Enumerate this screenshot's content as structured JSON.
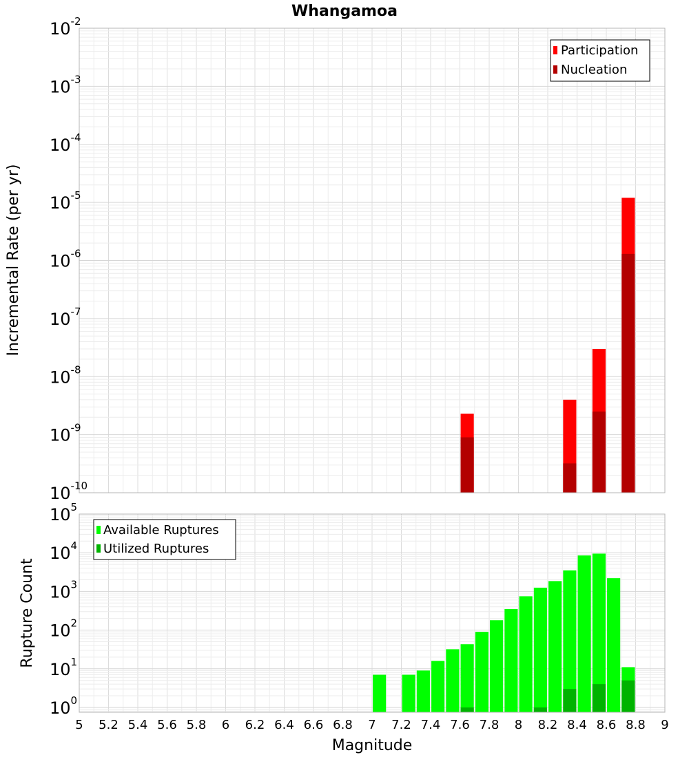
{
  "chart_data": [
    {
      "type": "bar",
      "title": "Whangamoa",
      "xlabel": "",
      "ylabel": "Incremental Rate (per yr)",
      "yscale": "log",
      "xlim": [
        5,
        9
      ],
      "ylim": [
        1e-10,
        0.01
      ],
      "grid": true,
      "legend_position": "top-right",
      "bar_width": 0.09,
      "yticks": [
        {
          "base": "10",
          "exp": "-10"
        },
        {
          "base": "10",
          "exp": "-9"
        },
        {
          "base": "10",
          "exp": "-8"
        },
        {
          "base": "10",
          "exp": "-7"
        },
        {
          "base": "10",
          "exp": "-6"
        },
        {
          "base": "10",
          "exp": "-5"
        },
        {
          "base": "10",
          "exp": "-4"
        },
        {
          "base": "10",
          "exp": "-3"
        },
        {
          "base": "10",
          "exp": "-2"
        }
      ],
      "series": [
        {
          "name": "Participation",
          "color": "#ff0000",
          "x": [
            7.65,
            8.35,
            8.55,
            8.75
          ],
          "values": [
            2.3e-09,
            4e-09,
            3e-08,
            1.2e-05
          ]
        },
        {
          "name": "Nucleation",
          "color": "#b30000",
          "x": [
            7.65,
            8.35,
            8.55,
            8.75
          ],
          "values": [
            9e-10,
            3.2e-10,
            2.5e-09,
            1.3e-06
          ]
        }
      ]
    },
    {
      "type": "bar",
      "title": "",
      "xlabel": "Magnitude",
      "ylabel": "Rupture Count",
      "yscale": "log",
      "xlim": [
        5,
        9
      ],
      "ylim": [
        0.75,
        100000.0
      ],
      "grid": true,
      "legend_position": "top-left",
      "bar_width": 0.09,
      "xticks": [
        "5",
        "5.2",
        "5.4",
        "5.6",
        "5.8",
        "6",
        "6.2",
        "6.4",
        "6.6",
        "6.8",
        "7",
        "7.2",
        "7.4",
        "7.6",
        "7.8",
        "8",
        "8.2",
        "8.4",
        "8.6",
        "8.8",
        "9"
      ],
      "yticks": [
        {
          "base": "10",
          "exp": "0"
        },
        {
          "base": "10",
          "exp": "1"
        },
        {
          "base": "10",
          "exp": "2"
        },
        {
          "base": "10",
          "exp": "3"
        },
        {
          "base": "10",
          "exp": "4"
        },
        {
          "base": "10",
          "exp": "5"
        }
      ],
      "series": [
        {
          "name": "Available Ruptures",
          "color": "#00ff00",
          "x": [
            7.05,
            7.25,
            7.35,
            7.45,
            7.55,
            7.65,
            7.75,
            7.85,
            7.95,
            8.05,
            8.15,
            8.25,
            8.35,
            8.45,
            8.55,
            8.65,
            8.75
          ],
          "values": [
            7,
            7,
            9,
            16,
            32,
            43,
            90,
            180,
            350,
            750,
            1250,
            1850,
            3500,
            8500,
            9500,
            2200,
            11
          ]
        },
        {
          "name": "Utilized Ruptures",
          "color": "#00b300",
          "x": [
            7.65,
            8.15,
            8.35,
            8.55,
            8.75
          ],
          "values": [
            1,
            1,
            3,
            4,
            5
          ]
        }
      ]
    }
  ]
}
